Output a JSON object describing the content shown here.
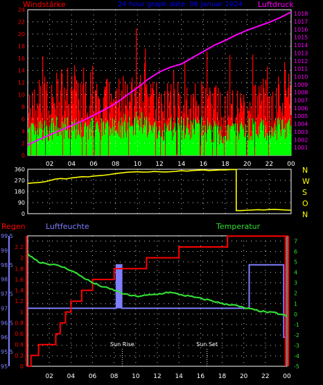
{
  "labels": {
    "windstaerke": "Windstärke",
    "header": "24 hour graph date: 06 Januar 2024",
    "luftdruck": "Luftdruck",
    "regen": "Regen",
    "luftfeuchte": "Luftfeuchte",
    "temperatur": "Temperatur",
    "sun_rise": "Sun Rise",
    "sun_set": "Sun Set"
  },
  "colors": {
    "wind_gust": "#ff0000",
    "wind_avg": "#00ff00",
    "pressure": "#ff00ff",
    "direction": "#ffff00",
    "humidity": "#7f7fff",
    "rain": "#ff0000",
    "temperature": "#33dd33",
    "left_axis_wind": "#ff0000",
    "right_axis_pressure": "#ff00ff",
    "header": "#0000ff",
    "grid": "#ffffff",
    "time_axis": "#ffffff"
  },
  "time_ticks": [
    "02",
    "04",
    "06",
    "08",
    "10",
    "12",
    "14",
    "16",
    "18",
    "20",
    "22",
    "00"
  ],
  "chart_data": [
    {
      "type": "bar",
      "name": "wind_pressure",
      "x_range_hours": [
        0,
        24
      ],
      "ylim_left": [
        0,
        24
      ],
      "ylim_right": [
        1000,
        1018.5
      ],
      "y_ticks_left": [
        "0",
        "2",
        "4",
        "6",
        "8",
        "10",
        "12",
        "14",
        "16",
        "18",
        "20",
        "22",
        "24"
      ],
      "y_ticks_right": [
        "1001",
        "1002",
        "1003",
        "1004",
        "1005",
        "1006",
        "1007",
        "1008",
        "1009",
        "1010",
        "1011",
        "1012",
        "1013",
        "1014",
        "1015",
        "1016",
        "1017",
        "1018"
      ],
      "wind": {
        "base_hours": [
          0,
          2,
          4,
          6,
          8,
          10,
          12,
          14,
          16,
          18,
          20,
          22,
          24
        ],
        "avg_base": [
          3,
          4,
          4,
          4,
          4,
          5,
          4,
          4,
          4,
          3,
          4,
          4,
          4
        ],
        "gust_base": [
          8,
          9,
          10,
          10,
          9,
          10,
          9,
          8,
          8,
          6,
          7,
          9,
          9
        ]
      },
      "pressure": {
        "x": [
          0,
          1,
          2,
          3,
          4,
          5,
          6,
          7,
          8,
          9,
          10,
          11,
          12,
          13,
          14,
          15,
          16,
          17,
          18,
          19,
          20,
          21,
          22,
          23,
          24
        ],
        "y": [
          1001.3,
          1002.0,
          1002.6,
          1003.2,
          1003.8,
          1004.4,
          1005.1,
          1005.8,
          1006.6,
          1007.6,
          1008.6,
          1009.7,
          1010.6,
          1011.2,
          1011.6,
          1012.4,
          1013.2,
          1014.0,
          1014.6,
          1015.3,
          1015.9,
          1016.4,
          1016.9,
          1017.5,
          1018.2
        ]
      }
    },
    {
      "type": "line",
      "name": "wind_direction",
      "x_range_hours": [
        0,
        24
      ],
      "ylim": [
        0,
        360
      ],
      "y_ticks": [
        "0",
        "90",
        "180",
        "270",
        "360"
      ],
      "compass": [
        "N",
        "W",
        "S",
        "O",
        "N"
      ],
      "x": [
        0,
        0.5,
        1,
        1.5,
        2,
        2.5,
        3,
        3.5,
        4,
        4.5,
        5,
        5.5,
        6,
        6.5,
        7,
        7.5,
        8,
        8.5,
        9,
        9.5,
        10,
        10.5,
        11,
        11.5,
        12,
        12.5,
        13,
        13.5,
        14,
        14.5,
        15,
        15.5,
        16,
        16.5,
        17,
        17.5,
        18,
        18.5,
        19,
        19.5,
        20,
        20.5,
        21,
        21.5,
        22,
        22.5,
        23,
        23.5,
        24
      ],
      "y": [
        245,
        250,
        252,
        258,
        268,
        280,
        285,
        282,
        290,
        295,
        300,
        298,
        305,
        308,
        312,
        318,
        325,
        330,
        335,
        338,
        340,
        337,
        338,
        342,
        340,
        338,
        340,
        343,
        348,
        345,
        350,
        352,
        355,
        350,
        352,
        355,
        355,
        358,
        25,
        25,
        28,
        30,
        32,
        30,
        33,
        35,
        32,
        30,
        28
      ]
    },
    {
      "type": "line",
      "name": "rain_humidity_temperature",
      "x_range_hours": [
        0,
        24
      ],
      "humidity_ticks": [
        "95",
        "95.5",
        "96",
        "96.5",
        "97",
        "97.5",
        "98",
        "98.5",
        "99",
        "99.5"
      ],
      "humidity_range": [
        95,
        99.5
      ],
      "rain_ticks": [
        "0",
        "0.2",
        "0.4",
        "0.6",
        "0.8",
        "1",
        "1.2",
        "1.4",
        "1.6",
        "1.8",
        "2",
        "2.2"
      ],
      "rain_range": [
        0,
        2.2
      ],
      "temp_ticks": [
        "-5",
        "-4",
        "-3",
        "-2",
        "-1",
        "0",
        "1",
        "2",
        "3",
        "4",
        "5",
        "6",
        "7"
      ],
      "temp_range": [
        -5,
        7.5
      ],
      "rain": {
        "x": [
          0,
          0.3,
          1,
          2,
          2.6,
          3,
          3.5,
          4,
          5,
          6,
          7,
          8,
          10,
          10.5,
          11,
          12.5,
          14,
          16,
          17,
          18,
          18.5,
          20,
          24
        ],
        "y": [
          0,
          0.2,
          0.4,
          0.4,
          0.6,
          0.8,
          1.0,
          1.2,
          1.4,
          1.6,
          1.6,
          1.8,
          1.8,
          1.8,
          2.0,
          2.0,
          2.2,
          2.2,
          2.2,
          2.2,
          2.4,
          2.4,
          2.4
        ]
      },
      "humidity": {
        "x": [
          0,
          8.2,
          8.2,
          8.7,
          8.7,
          20.5,
          20.5,
          23.7,
          23.7,
          24
        ],
        "y": [
          97,
          97,
          98.5,
          98.5,
          97,
          97,
          98.5,
          98.5,
          96,
          96
        ]
      },
      "temperature": {
        "x": [
          0,
          1,
          2,
          3,
          4,
          5,
          6,
          7,
          8,
          9,
          10,
          11,
          12,
          13,
          14,
          15,
          16,
          17,
          18,
          19,
          20,
          21,
          22,
          23,
          24
        ],
        "y": [
          5.8,
          5.0,
          4.8,
          4.6,
          4.2,
          3.6,
          3.0,
          2.6,
          2.3,
          1.9,
          1.7,
          1.8,
          1.9,
          2.1,
          1.9,
          1.7,
          1.5,
          1.3,
          1.0,
          0.9,
          0.6,
          0.4,
          0.2,
          0.1,
          -0.2
        ]
      },
      "sun_rise_hour": 8.75,
      "sun_set_hour": 16.6
    }
  ]
}
